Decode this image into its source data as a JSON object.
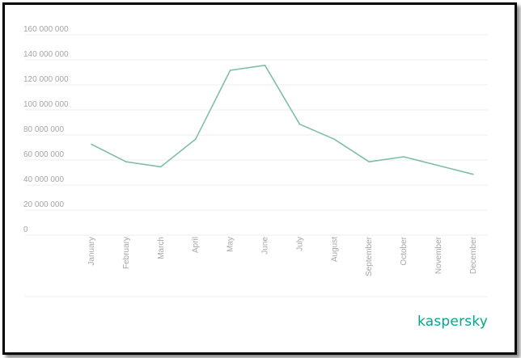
{
  "brand": {
    "logo_text": "kaspersky",
    "color": "#00a88e"
  },
  "colors": {
    "line": "#7fbfa3",
    "grid": "#eeeeee",
    "tick_text": "#a6a6a6",
    "frame": "#000000"
  },
  "chart_data": {
    "type": "line",
    "title": "",
    "xlabel": "",
    "ylabel": "",
    "categories": [
      "January",
      "February",
      "March",
      "April",
      "May",
      "June",
      "July",
      "August",
      "September",
      "October",
      "November",
      "December"
    ],
    "series": [
      {
        "values": [
          70000000,
          56000000,
          52000000,
          74000000,
          129000000,
          133000000,
          86000000,
          74000000,
          56000000,
          60000000,
          53000000,
          46000000
        ]
      }
    ],
    "ylim": [
      0,
      160000000
    ],
    "yticks": [
      0,
      20000000,
      40000000,
      60000000,
      80000000,
      100000000,
      120000000,
      140000000,
      160000000
    ],
    "ytick_labels": [
      "0",
      "20 000 000",
      "40 000 000",
      "60 000 000",
      "80 000 000",
      "100 000 000",
      "120 000 000",
      "140 000 000",
      "160 000 000"
    ],
    "grid": true,
    "legend": "none"
  }
}
